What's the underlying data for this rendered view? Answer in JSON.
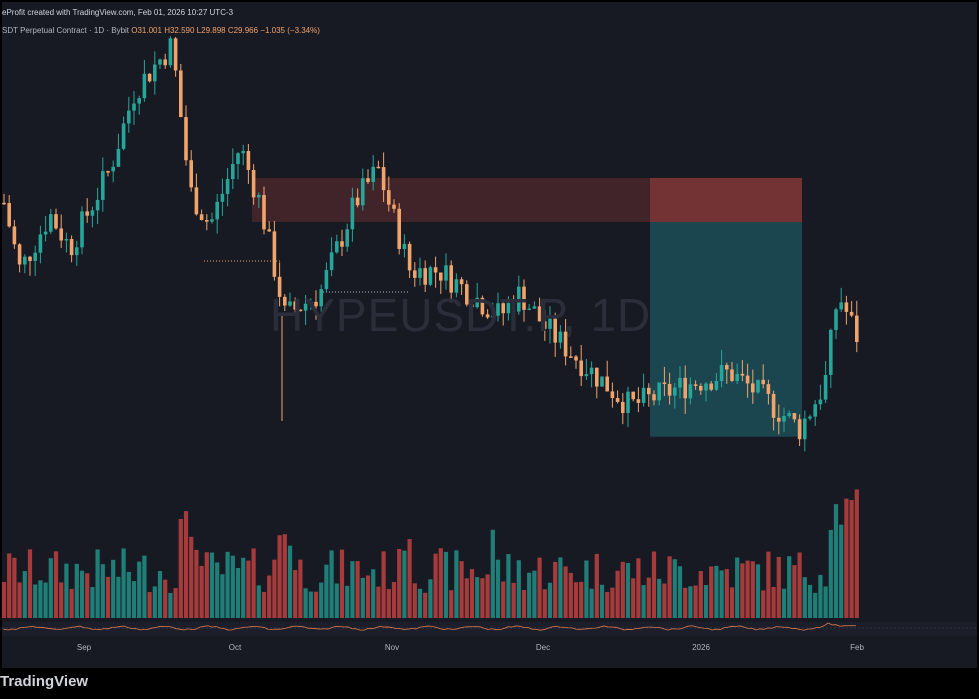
{
  "header": {
    "created_text": "eProfit created with TradingView.com, Feb 01, 2026 10:27 UTC-3",
    "symbol_text": "SDT Perpetual Contract · 1D · Bybit",
    "ohlc_open": "O31.001",
    "ohlc_high": "H32.590",
    "ohlc_low": "L29.898",
    "ohlc_close": "C29.966",
    "ohlc_change": "−1.035 (−3.34%)"
  },
  "watermark": "HYPEUSDT.P, 1D",
  "brand": "TradingView",
  "colors": {
    "bull": "#26a69a",
    "bear": "#f0a36a",
    "vol_bull": "#1f7f78",
    "vol_bear": "#a63b3b",
    "stop_zone": "#8b3a3a",
    "target_zone": "#1d4f57"
  },
  "chart_data": {
    "type": "candlestick",
    "timeframe": "1D",
    "x_labels": [
      "Sep",
      "Oct",
      "Nov",
      "Dec",
      "2026",
      "Feb"
    ],
    "series": [
      {
        "name": "price",
        "start_value": 44.0,
        "end_value": 29.97,
        "min_value": 23.5,
        "max_value": 58.5
      },
      {
        "name": "volume",
        "note_scale": "relative"
      }
    ],
    "annotations": {
      "long_position": {
        "entry": 42.3,
        "stop": 46.2,
        "target": 23.3
      },
      "resistance_zone": {
        "top": 46.2,
        "bottom": 42.3
      }
    }
  }
}
